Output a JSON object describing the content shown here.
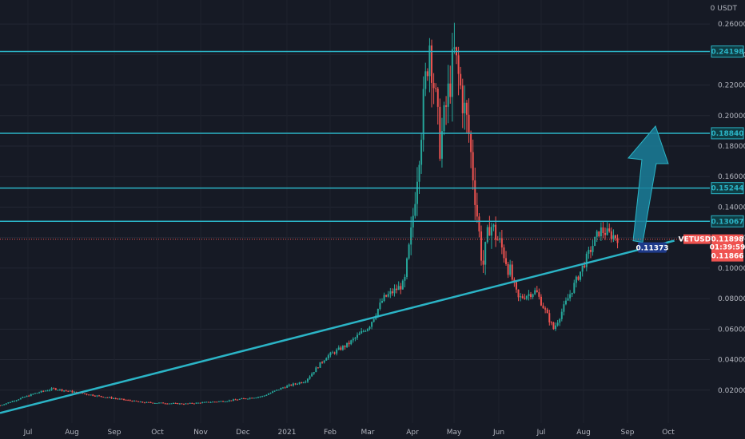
{
  "chart_data": {
    "type": "candlestick",
    "symbol": "VETUSDT",
    "unit": "USDT",
    "y_axis_top_label": "0",
    "ylim": [
      0.0,
      0.27
    ],
    "y_ticks": [
      "0.26000",
      "0.24000",
      "0.22000",
      "0.20000",
      "0.18000",
      "0.16000",
      "0.14000",
      "0.12000",
      "0.10000",
      "0.08000",
      "0.06000",
      "0.04000",
      "0.02000"
    ],
    "x_ticks": [
      "Jul",
      "Aug",
      "Sep",
      "Oct",
      "Nov",
      "Dec",
      "2021",
      "Feb",
      "Mar",
      "Apr",
      "May",
      "Jun",
      "Jul",
      "Aug",
      "Sep",
      "Oct"
    ],
    "price_path": [
      [
        0.0,
        0.01
      ],
      [
        0.05,
        0.018
      ],
      [
        0.075,
        0.021
      ],
      [
        0.14,
        0.016
      ],
      [
        0.2,
        0.012
      ],
      [
        0.26,
        0.011
      ],
      [
        0.32,
        0.013
      ],
      [
        0.37,
        0.016
      ],
      [
        0.4,
        0.022
      ],
      [
        0.43,
        0.026
      ],
      [
        0.46,
        0.042
      ],
      [
        0.49,
        0.05
      ],
      [
        0.52,
        0.062
      ],
      [
        0.54,
        0.08
      ],
      [
        0.57,
        0.09
      ],
      [
        0.58,
        0.125
      ],
      [
        0.595,
        0.2
      ],
      [
        0.605,
        0.25
      ],
      [
        0.62,
        0.18
      ],
      [
        0.64,
        0.24
      ],
      [
        0.66,
        0.19
      ],
      [
        0.68,
        0.1
      ],
      [
        0.69,
        0.13
      ],
      [
        0.71,
        0.11
      ],
      [
        0.73,
        0.08
      ],
      [
        0.755,
        0.085
      ],
      [
        0.78,
        0.06
      ],
      [
        0.8,
        0.08
      ],
      [
        0.83,
        0.11
      ],
      [
        0.845,
        0.125
      ],
      [
        0.87,
        0.12
      ]
    ],
    "horizontal_levels": [
      {
        "label": "0.24198",
        "value": 0.24198
      },
      {
        "label": "0.18840",
        "value": 0.1884
      },
      {
        "label": "0.15244",
        "value": 0.15244
      },
      {
        "label": "0.13067",
        "value": 0.13067
      }
    ],
    "trendline": {
      "start": [
        0.0,
        0.005
      ],
      "end": [
        0.95,
        0.118
      ],
      "label": "0.11373",
      "label_value": 0.11373
    },
    "last_price": {
      "symbol": "VETUSDT",
      "price": "0.11898",
      "countdown": "01:39:59",
      "low": "0.11866",
      "value": 0.11898
    },
    "colors": {
      "background": "#161a25",
      "level_line": "#2bb4c6",
      "trendline": "#2bb4c6",
      "candle_up": "#26a69a",
      "candle_down": "#ef5350",
      "arrow": "#1a7f9a",
      "price_tag": "#ef5350",
      "trend_tag": "#1e3a8a"
    }
  }
}
